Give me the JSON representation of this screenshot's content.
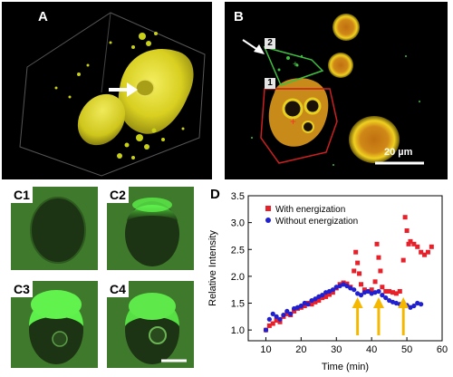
{
  "panels": {
    "a": {
      "label": "A",
      "bg": "#000000",
      "cell_color": "#e0d820"
    },
    "b": {
      "label": "B",
      "bg": "#000000",
      "roi_green": "#3fbf3f",
      "roi_red": "#cc2020",
      "roi_labels": [
        "2",
        "1"
      ],
      "scale_label": "20 µm"
    },
    "c": {
      "labels": [
        "C1",
        "C2",
        "C3",
        "C4"
      ],
      "bg": "#3f7a2c",
      "bright": "#5df04a"
    },
    "d": {
      "label": "D"
    }
  },
  "chart_data": {
    "type": "scatter",
    "title": "",
    "xlabel": "Time (min)",
    "ylabel": "Relative Intensity",
    "xlim": [
      5,
      60
    ],
    "ylim": [
      0.8,
      3.5
    ],
    "xticks": [
      10,
      20,
      30,
      40,
      50,
      60
    ],
    "yticks": [
      1.0,
      1.5,
      2.0,
      2.5,
      3.0,
      3.5
    ],
    "legend_position": "top-left",
    "arrows_x": [
      36,
      42,
      49
    ],
    "arrow_color": "#f5b800",
    "series": [
      {
        "name": "With energization",
        "color": "#e8202a",
        "marker": "square",
        "x": [
          10,
          11,
          12,
          13,
          14,
          15,
          16,
          17,
          18,
          19,
          20,
          21,
          22,
          23,
          24,
          25,
          26,
          27,
          28,
          29,
          30,
          31,
          32,
          33,
          34,
          35,
          35.5,
          36,
          36.5,
          37,
          38,
          39,
          40,
          41,
          41.5,
          42,
          42.5,
          43,
          44,
          45,
          46,
          47,
          48,
          49,
          49.5,
          50,
          50.5,
          51,
          52,
          53,
          54,
          55,
          56,
          57
        ],
        "y": [
          1.0,
          1.08,
          1.12,
          1.18,
          1.15,
          1.25,
          1.3,
          1.28,
          1.35,
          1.4,
          1.42,
          1.45,
          1.5,
          1.48,
          1.52,
          1.55,
          1.6,
          1.62,
          1.66,
          1.7,
          1.78,
          1.85,
          1.88,
          1.86,
          1.8,
          2.1,
          2.45,
          2.25,
          2.05,
          1.85,
          1.75,
          1.72,
          1.75,
          1.9,
          2.6,
          2.35,
          2.1,
          1.8,
          1.72,
          1.72,
          1.7,
          1.68,
          1.72,
          2.3,
          3.1,
          2.85,
          2.6,
          2.65,
          2.6,
          2.55,
          2.45,
          2.4,
          2.45,
          2.55
        ]
      },
      {
        "name": "Without energization",
        "color": "#2020d0",
        "marker": "circle",
        "x": [
          10,
          11,
          12,
          13,
          14,
          15,
          16,
          17,
          18,
          19,
          20,
          21,
          22,
          23,
          24,
          25,
          26,
          27,
          28,
          29,
          30,
          31,
          32,
          33,
          34,
          35,
          36,
          37,
          38,
          39,
          40,
          41,
          42,
          43,
          44,
          45,
          46,
          47,
          48,
          49,
          50,
          51,
          52,
          53,
          54
        ],
        "y": [
          1.0,
          1.2,
          1.3,
          1.25,
          1.2,
          1.28,
          1.35,
          1.3,
          1.4,
          1.42,
          1.45,
          1.5,
          1.48,
          1.55,
          1.58,
          1.62,
          1.65,
          1.7,
          1.72,
          1.75,
          1.8,
          1.82,
          1.85,
          1.82,
          1.78,
          1.75,
          1.68,
          1.65,
          1.7,
          1.72,
          1.68,
          1.7,
          1.72,
          1.65,
          1.6,
          1.55,
          1.52,
          1.5,
          1.48,
          1.45,
          1.46,
          1.42,
          1.45,
          1.5,
          1.48
        ]
      }
    ]
  }
}
